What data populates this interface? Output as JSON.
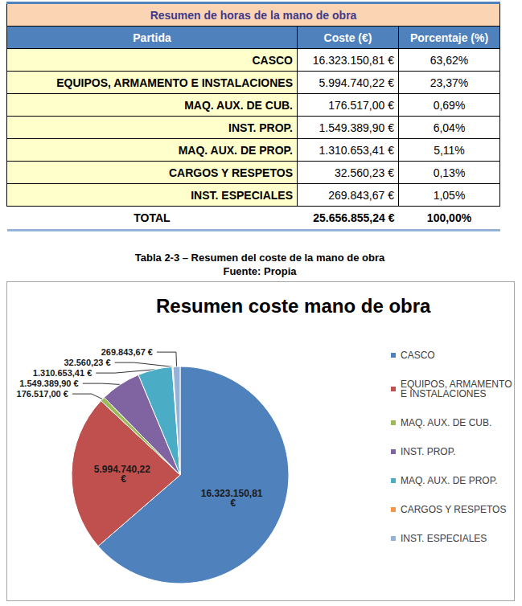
{
  "table": {
    "title": "Resumen de horas de la mano de obra",
    "header": [
      "Partida",
      "Coste (€)",
      "Porcentaje (%)"
    ],
    "rows": [
      [
        "CASCO",
        "16.323.150,81 €",
        "63,62%"
      ],
      [
        "EQUIPOS, ARMAMENTO E INSTALACIONES",
        "5.994.740,22 €",
        "23,37%"
      ],
      [
        "MAQ. AUX. DE CUB.",
        "176.517,00 €",
        "0,69%"
      ],
      [
        "INST. PROP.",
        "1.549.389,90 €",
        "6,04%"
      ],
      [
        "MAQ. AUX. DE PROP.",
        "1.310.653,41 €",
        "5,11%"
      ],
      [
        "CARGOS Y RESPETOS",
        "32.560,23 €",
        "0,13%"
      ],
      [
        "INST. ESPECIALES",
        "269.843,67 €",
        "1,05%"
      ]
    ],
    "total": [
      "TOTAL",
      "25.656.855,24 €",
      "100,00%"
    ]
  },
  "caption": {
    "title": "Tabla 2-3 – Resumen del coste de la mano de obra",
    "source": "Fuente: Propia"
  },
  "chart_data": {
    "type": "pie",
    "title": "Resumen coste mano de obra",
    "categories": [
      "CASCO",
      "EQUIPOS, ARMAMENTO E INSTALACIONES",
      "MAQ. AUX. DE CUB.",
      "INST. PROP.",
      "MAQ. AUX. DE PROP.",
      "CARGOS Y RESPETOS",
      "INST. ESPECIALES"
    ],
    "values": [
      16323150.81,
      5994740.22,
      176517.0,
      1549389.9,
      1310653.41,
      32560.23,
      269843.67
    ],
    "value_labels": [
      "16.323.150,81 €",
      "5.994.740,22 €",
      "176.517,00 €",
      "1.549.389,90 €",
      "1.310.653,41 €",
      "32.560,23 €",
      "269.843,67 €"
    ],
    "colors": [
      "#4f81bd",
      "#c0504d",
      "#9bbb59",
      "#8064a2",
      "#4bacc6",
      "#f79646",
      "#95b3d7"
    ],
    "legend": "right",
    "data_labels": true
  }
}
